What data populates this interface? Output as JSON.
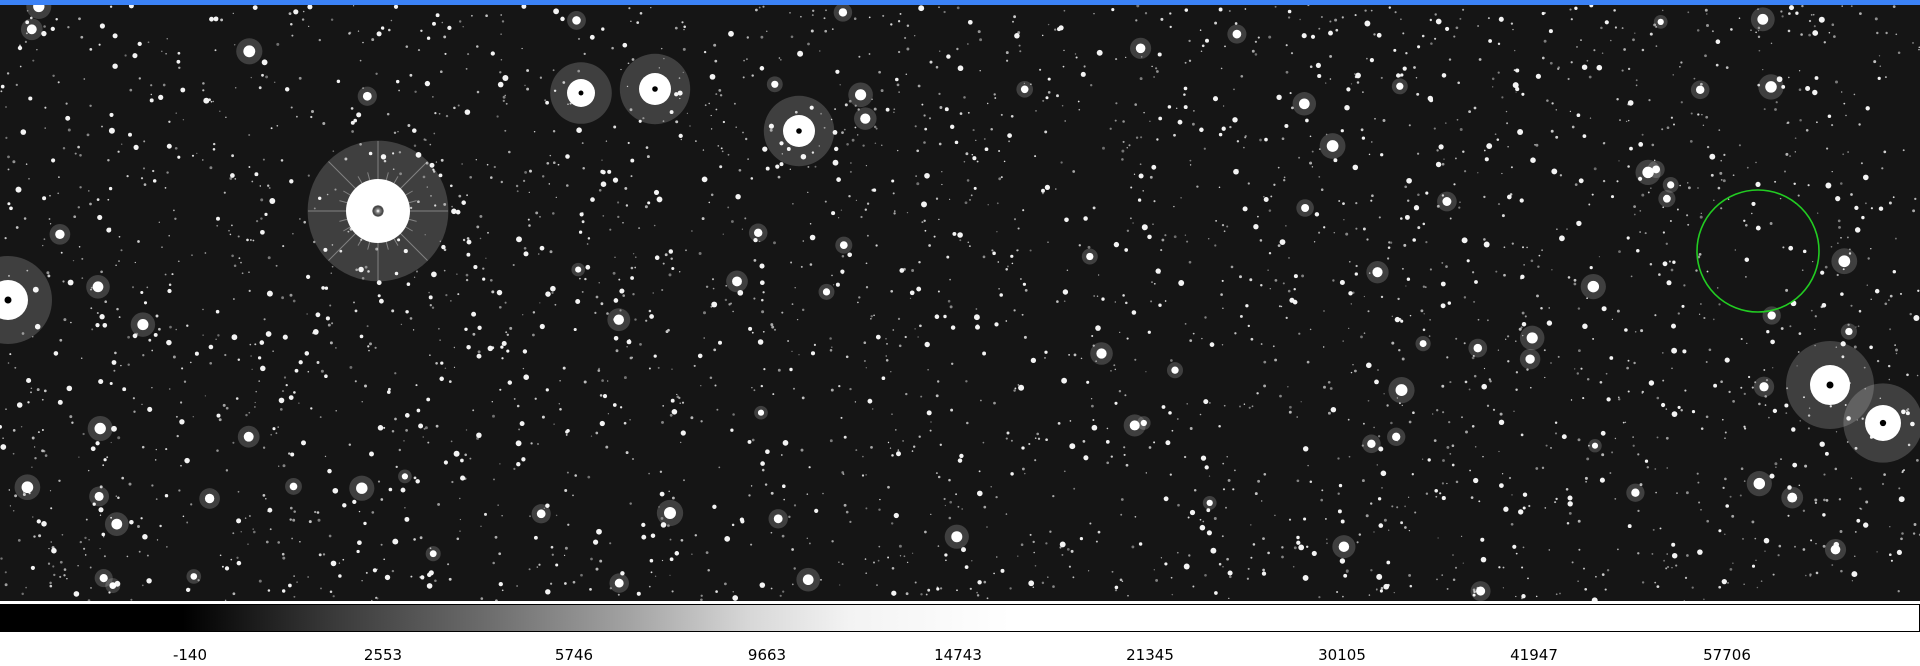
{
  "window": {
    "accent_color": "#3b82f6"
  },
  "image": {
    "background_color": "#151515",
    "region_color": "#22cc22"
  },
  "colorbar": {
    "tick_labels": [
      "-140",
      "2553",
      "5746",
      "9663",
      "14743",
      "21345",
      "30105",
      "41947",
      "57706"
    ]
  }
}
